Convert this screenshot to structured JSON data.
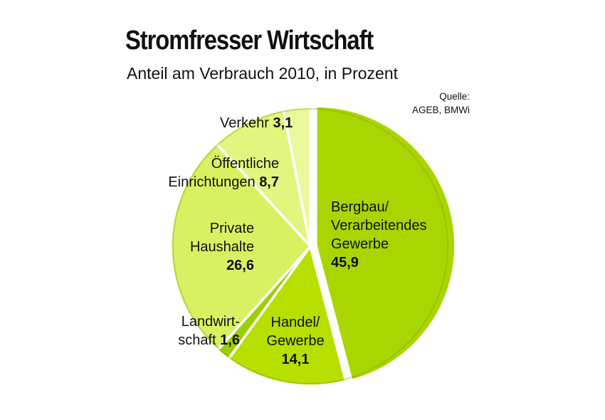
{
  "chart_data": {
    "type": "pie",
    "title": "Stromfresser Wirtschaft",
    "subtitle": "Anteil am Verbrauch 2010, in Prozent",
    "source": [
      "Quelle:",
      "AGEB, BMWi"
    ],
    "slices": [
      {
        "lines": [
          "Bergbau/",
          "Verarbeitendes",
          "Gewerbe"
        ],
        "value": 45.9,
        "value_text": "45,9",
        "color": "#a9d600"
      },
      {
        "lines": [
          "Handel/",
          "Gewerbe"
        ],
        "value": 14.1,
        "value_text": "14,1",
        "color": "#b7e000"
      },
      {
        "lines": [
          "Landwirt-",
          "schaft"
        ],
        "value": 1.6,
        "value_text": "1,6",
        "color": "#9ccf00"
      },
      {
        "lines": [
          "Private",
          "Haushalte"
        ],
        "value": 26.6,
        "value_text": "26,6",
        "color": "#d8f163"
      },
      {
        "lines": [
          "Öffentliche",
          "Einrichtungen"
        ],
        "value": 8.7,
        "value_text": "8,7",
        "color": "#e2f57e"
      },
      {
        "lines": [
          "Verkehr"
        ],
        "value": 3.1,
        "value_text": "3,1",
        "color": "#ebf89b"
      }
    ]
  }
}
